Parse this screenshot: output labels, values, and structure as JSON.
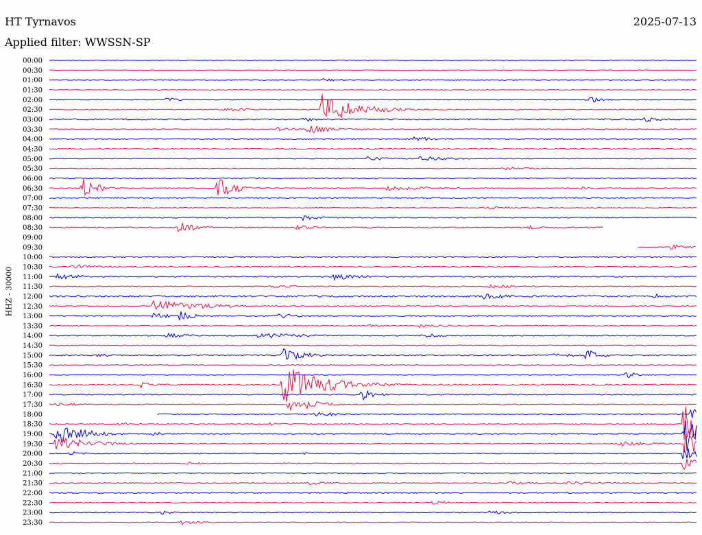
{
  "header": {
    "station": "HT Tyrnavos",
    "date": "2025-07-13",
    "filter_text": "Applied filter: WWSSN-SP"
  },
  "colors": {
    "blue": "#0000dd",
    "red": "#ee1144"
  },
  "chart_data": {
    "type": "line",
    "title": "HT Tyrnavos",
    "date": "2025-07-13",
    "filter": "WWSSN-SP",
    "ylabel": "HHZ - 30000",
    "xlabel": "",
    "grid": false,
    "row_minutes": 30,
    "colors": [
      "#0000dd",
      "#ee1144"
    ],
    "rows": [
      {
        "label": "00:00",
        "start": 0,
        "end": 1,
        "noise": 0.4,
        "events": []
      },
      {
        "label": "00:30",
        "start": 0,
        "end": 1,
        "noise": 0.4,
        "events": []
      },
      {
        "label": "01:00",
        "start": 0,
        "end": 1,
        "noise": 0.6,
        "events": [
          {
            "t": 0.42,
            "amp": 3,
            "dur": 0.03
          }
        ]
      },
      {
        "label": "01:30",
        "start": 0,
        "end": 1,
        "noise": 0.5,
        "events": []
      },
      {
        "label": "02:00",
        "start": 0,
        "end": 1,
        "noise": 0.6,
        "events": [
          {
            "t": 0.18,
            "amp": 3,
            "dur": 0.03
          },
          {
            "t": 0.83,
            "amp": 8,
            "dur": 0.02
          }
        ]
      },
      {
        "label": "02:30",
        "start": 0,
        "end": 1,
        "noise": 0.6,
        "events": [
          {
            "t": 0.27,
            "amp": 5,
            "dur": 0.03
          },
          {
            "t": 0.42,
            "amp": 25,
            "dur": 0.05
          }
        ]
      },
      {
        "label": "03:00",
        "start": 0,
        "end": 1,
        "noise": 0.9,
        "events": [
          {
            "t": 0.39,
            "amp": 5,
            "dur": 0.02
          },
          {
            "t": 0.92,
            "amp": 5,
            "dur": 0.02
          }
        ]
      },
      {
        "label": "03:30",
        "start": 0,
        "end": 1,
        "noise": 0.6,
        "events": [
          {
            "t": 0.35,
            "amp": 3,
            "dur": 0.04
          },
          {
            "t": 0.4,
            "amp": 9,
            "dur": 0.03
          }
        ]
      },
      {
        "label": "04:00",
        "start": 0,
        "end": 1,
        "noise": 0.9,
        "events": [
          {
            "t": 0.56,
            "amp": 4,
            "dur": 0.04
          }
        ]
      },
      {
        "label": "04:30",
        "start": 0,
        "end": 1,
        "noise": 0.7,
        "events": []
      },
      {
        "label": "05:00",
        "start": 0,
        "end": 1,
        "noise": 0.6,
        "events": [
          {
            "t": 0.49,
            "amp": 3,
            "dur": 0.05
          },
          {
            "t": 0.57,
            "amp": 4,
            "dur": 0.05
          }
        ]
      },
      {
        "label": "05:30",
        "start": 0,
        "end": 1,
        "noise": 0.5,
        "events": [
          {
            "t": 0.7,
            "amp": 3,
            "dur": 0.04
          }
        ]
      },
      {
        "label": "06:00",
        "start": 0,
        "end": 1,
        "noise": 0.8,
        "events": [
          {
            "t": 0.31,
            "amp": 3,
            "dur": 0.02
          }
        ]
      },
      {
        "label": "06:30",
        "start": 0,
        "end": 1,
        "noise": 0.6,
        "events": [
          {
            "t": 0.05,
            "amp": 18,
            "dur": 0.02
          },
          {
            "t": 0.26,
            "amp": 16,
            "dur": 0.03
          },
          {
            "t": 0.52,
            "amp": 4,
            "dur": 0.08
          },
          {
            "t": 0.82,
            "amp": 4,
            "dur": 0.02
          }
        ]
      },
      {
        "label": "07:00",
        "start": 0,
        "end": 1,
        "noise": 0.9,
        "events": []
      },
      {
        "label": "07:30",
        "start": 0,
        "end": 1,
        "noise": 0.5,
        "events": [
          {
            "t": 0.67,
            "amp": 3,
            "dur": 0.04
          }
        ]
      },
      {
        "label": "08:00",
        "start": 0,
        "end": 1,
        "noise": 0.8,
        "events": [
          {
            "t": 0.39,
            "amp": 5,
            "dur": 0.03
          }
        ]
      },
      {
        "label": "08:30",
        "start": 0,
        "end": 0.857,
        "noise": 0.7,
        "events": [
          {
            "t": 0.2,
            "amp": 13,
            "dur": 0.02
          },
          {
            "t": 0.38,
            "amp": 4,
            "dur": 0.03
          },
          {
            "t": 0.74,
            "amp": 3,
            "dur": 0.04
          }
        ]
      },
      {
        "label": "09:00",
        "start": 0,
        "end": 0,
        "noise": 0,
        "events": []
      },
      {
        "label": "09:30",
        "start": 0.91,
        "end": 1,
        "noise": 0.6,
        "events": [
          {
            "t": 0.96,
            "amp": 5,
            "dur": 0.03
          }
        ]
      },
      {
        "label": "10:00",
        "start": 0,
        "end": 1,
        "noise": 1.0,
        "events": []
      },
      {
        "label": "10:30",
        "start": 0,
        "end": 1,
        "noise": 0.7,
        "events": [
          {
            "t": 0.03,
            "amp": 4,
            "dur": 0.05
          }
        ]
      },
      {
        "label": "11:00",
        "start": 0,
        "end": 1,
        "noise": 0.9,
        "events": [
          {
            "t": 0.01,
            "amp": 5,
            "dur": 0.04
          },
          {
            "t": 0.44,
            "amp": 6,
            "dur": 0.04
          }
        ]
      },
      {
        "label": "11:30",
        "start": 0,
        "end": 1,
        "noise": 0.7,
        "events": [
          {
            "t": 0.34,
            "amp": 2,
            "dur": 0.1
          },
          {
            "t": 0.68,
            "amp": 3,
            "dur": 0.06
          }
        ]
      },
      {
        "label": "12:00",
        "start": 0,
        "end": 1,
        "noise": 1.2,
        "events": [
          {
            "t": 0.67,
            "amp": 5,
            "dur": 0.04
          },
          {
            "t": 0.93,
            "amp": 5,
            "dur": 0.02
          }
        ]
      },
      {
        "label": "12:30",
        "start": 0,
        "end": 1,
        "noise": 0.7,
        "events": [
          {
            "t": 0.16,
            "amp": 10,
            "dur": 0.06
          },
          {
            "t": 0.23,
            "amp": 5,
            "dur": 0.06
          }
        ]
      },
      {
        "label": "13:00",
        "start": 0,
        "end": 1,
        "noise": 0.8,
        "events": [
          {
            "t": 0.16,
            "amp": 4,
            "dur": 0.04
          },
          {
            "t": 0.2,
            "amp": 8,
            "dur": 0.02
          },
          {
            "t": 0.35,
            "amp": 4,
            "dur": 0.04
          }
        ]
      },
      {
        "label": "13:30",
        "start": 0,
        "end": 1,
        "noise": 0.6,
        "events": [
          {
            "t": 0.49,
            "amp": 4,
            "dur": 0.02
          },
          {
            "t": 0.57,
            "amp": 4,
            "dur": 0.04
          }
        ]
      },
      {
        "label": "14:00",
        "start": 0,
        "end": 1,
        "noise": 0.9,
        "events": [
          {
            "t": 0.18,
            "amp": 4,
            "dur": 0.04
          },
          {
            "t": 0.32,
            "amp": 4,
            "dur": 0.1
          },
          {
            "t": 0.57,
            "amp": 5,
            "dur": 0.03
          }
        ]
      },
      {
        "label": "14:30",
        "start": 0,
        "end": 1,
        "noise": 0.6,
        "events": []
      },
      {
        "label": "15:00",
        "start": 0,
        "end": 1,
        "noise": 0.9,
        "events": [
          {
            "t": 0.07,
            "amp": 3,
            "dur": 0.03
          },
          {
            "t": 0.36,
            "amp": 12,
            "dur": 0.03
          },
          {
            "t": 0.77,
            "amp": 3,
            "dur": 0.06
          },
          {
            "t": 0.83,
            "amp": 10,
            "dur": 0.02
          }
        ]
      },
      {
        "label": "15:30",
        "start": 0,
        "end": 1,
        "noise": 0.6,
        "events": []
      },
      {
        "label": "16:00",
        "start": 0,
        "end": 1,
        "noise": 0.6,
        "events": [
          {
            "t": 0.89,
            "amp": 6,
            "dur": 0.02
          }
        ]
      },
      {
        "label": "16:30",
        "start": 0,
        "end": 1,
        "noise": 0.9,
        "events": [
          {
            "t": 0.14,
            "amp": 5,
            "dur": 0.02
          },
          {
            "t": 0.36,
            "amp": 30,
            "dur": 0.06
          },
          {
            "t": 0.45,
            "amp": 5,
            "dur": 0.03
          }
        ]
      },
      {
        "label": "17:00",
        "start": 0,
        "end": 1,
        "noise": 0.8,
        "events": [
          {
            "t": 0.48,
            "amp": 10,
            "dur": 0.02
          }
        ]
      },
      {
        "label": "17:30",
        "start": 0,
        "end": 1,
        "noise": 0.6,
        "events": [
          {
            "t": 0.01,
            "amp": 4,
            "dur": 0.03
          },
          {
            "t": 0.37,
            "amp": 18,
            "dur": 0.03
          }
        ]
      },
      {
        "label": "18:00",
        "start": 0.167,
        "end": 1,
        "noise": 0.6,
        "events": [
          {
            "t": 0.41,
            "amp": 4,
            "dur": 0.04
          },
          {
            "t": 0.99,
            "amp": 22,
            "dur": 0.01
          }
        ]
      },
      {
        "label": "18:30",
        "start": 0,
        "end": 1,
        "noise": 0.6,
        "events": [
          {
            "t": 0.1,
            "amp": 3,
            "dur": 0.03
          },
          {
            "t": 0.34,
            "amp": 3,
            "dur": 0.02
          },
          {
            "t": 0.98,
            "amp": 40,
            "dur": 0.02
          }
        ]
      },
      {
        "label": "19:00",
        "start": 0,
        "end": 1,
        "noise": 0.8,
        "events": [
          {
            "t": 0.01,
            "amp": 18,
            "dur": 0.04
          },
          {
            "t": 0.16,
            "amp": 4,
            "dur": 0.02
          },
          {
            "t": 0.98,
            "amp": 40,
            "dur": 0.02
          }
        ]
      },
      {
        "label": "19:30",
        "start": 0,
        "end": 1,
        "noise": 0.6,
        "events": [
          {
            "t": 0.01,
            "amp": 12,
            "dur": 0.05
          },
          {
            "t": 0.88,
            "amp": 4,
            "dur": 0.05
          },
          {
            "t": 0.98,
            "amp": 30,
            "dur": 0.02
          }
        ]
      },
      {
        "label": "20:00",
        "start": 0,
        "end": 1,
        "noise": 0.6,
        "events": [
          {
            "t": 0.03,
            "amp": 4,
            "dur": 0.02
          },
          {
            "t": 0.39,
            "amp": 3,
            "dur": 0.01
          },
          {
            "t": 0.98,
            "amp": 20,
            "dur": 0.02
          }
        ]
      },
      {
        "label": "20:30",
        "start": 0,
        "end": 1,
        "noise": 0.6,
        "events": [
          {
            "t": 0.21,
            "amp": 3,
            "dur": 0.02
          },
          {
            "t": 0.98,
            "amp": 14,
            "dur": 0.02
          }
        ]
      },
      {
        "label": "21:00",
        "start": 0,
        "end": 1,
        "noise": 0.6,
        "events": []
      },
      {
        "label": "21:30",
        "start": 0,
        "end": 1,
        "noise": 0.6,
        "events": [
          {
            "t": 0.4,
            "amp": 3,
            "dur": 0.04
          },
          {
            "t": 0.71,
            "amp": 3,
            "dur": 0.04
          },
          {
            "t": 0.8,
            "amp": 3,
            "dur": 0.06
          }
        ]
      },
      {
        "label": "22:00",
        "start": 0,
        "end": 1,
        "noise": 0.9,
        "events": []
      },
      {
        "label": "22:30",
        "start": 0,
        "end": 1,
        "noise": 0.6,
        "events": [
          {
            "t": 0.59,
            "amp": 4,
            "dur": 0.02
          }
        ]
      },
      {
        "label": "23:00",
        "start": 0,
        "end": 1,
        "noise": 0.6,
        "events": [
          {
            "t": 0.17,
            "amp": 3,
            "dur": 0.03
          },
          {
            "t": 0.68,
            "amp": 3,
            "dur": 0.04
          }
        ]
      },
      {
        "label": "23:30",
        "start": 0,
        "end": 1,
        "noise": 0.5,
        "events": [
          {
            "t": 0.2,
            "amp": 4,
            "dur": 0.03
          }
        ]
      }
    ]
  }
}
